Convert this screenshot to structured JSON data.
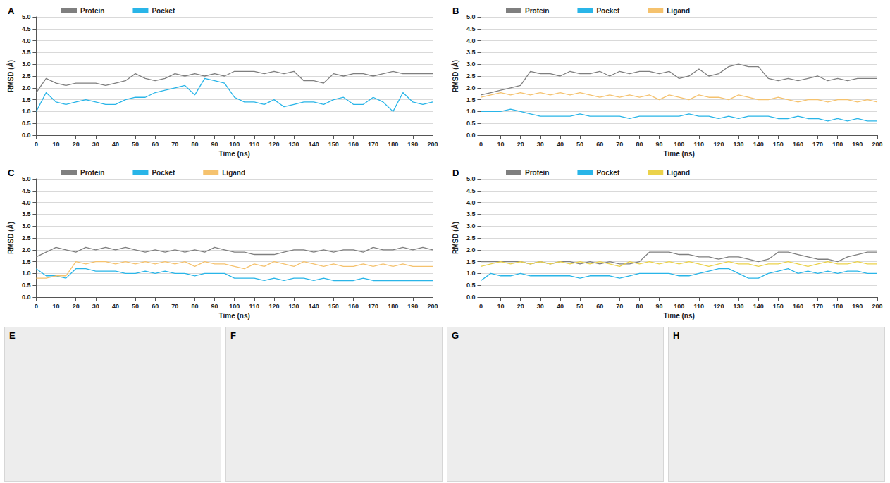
{
  "chart_data": [
    {
      "type": "line",
      "title": "A",
      "x_label": "Time (ns)",
      "y_label": "RMSD (Å)",
      "x": [
        0,
        5,
        10,
        15,
        20,
        25,
        30,
        35,
        40,
        45,
        50,
        55,
        60,
        65,
        70,
        75,
        80,
        85,
        90,
        95,
        100,
        105,
        110,
        115,
        120,
        125,
        130,
        135,
        140,
        145,
        150,
        155,
        160,
        165,
        170,
        175,
        180,
        185,
        190,
        195,
        200
      ],
      "series": [
        {
          "name": "Protein",
          "color": "#7f7f7f",
          "values": [
            1.8,
            2.4,
            2.2,
            2.1,
            2.2,
            2.2,
            2.2,
            2.1,
            2.2,
            2.3,
            2.6,
            2.4,
            2.3,
            2.4,
            2.6,
            2.5,
            2.6,
            2.5,
            2.6,
            2.5,
            2.7,
            2.7,
            2.7,
            2.6,
            2.7,
            2.6,
            2.7,
            2.3,
            2.3,
            2.2,
            2.6,
            2.5,
            2.6,
            2.6,
            2.5,
            2.6,
            2.7,
            2.6,
            2.6,
            2.6,
            2.6
          ]
        },
        {
          "name": "Pocket",
          "color": "#29b5e8",
          "values": [
            1.0,
            1.8,
            1.4,
            1.3,
            1.4,
            1.5,
            1.4,
            1.3,
            1.3,
            1.5,
            1.6,
            1.6,
            1.8,
            1.9,
            2.0,
            2.1,
            1.7,
            2.4,
            2.3,
            2.2,
            1.6,
            1.4,
            1.4,
            1.3,
            1.5,
            1.2,
            1.3,
            1.4,
            1.4,
            1.3,
            1.5,
            1.6,
            1.3,
            1.3,
            1.6,
            1.4,
            1.0,
            1.8,
            1.4,
            1.3,
            1.4
          ]
        }
      ],
      "xlim": [
        0,
        200
      ],
      "xticks": [
        0,
        10,
        20,
        30,
        40,
        50,
        60,
        70,
        80,
        90,
        100,
        110,
        120,
        130,
        140,
        150,
        160,
        170,
        180,
        190,
        200
      ],
      "ylim": [
        0,
        5
      ],
      "yticks": [
        {
          "value": 0,
          "label": "0.0"
        },
        {
          "value": 0.5,
          "label": "0.5"
        },
        {
          "value": 1,
          "label": "1.0"
        },
        {
          "value": 1.5,
          "label": "1.5"
        },
        {
          "value": 2,
          "label": "2.0"
        },
        {
          "value": 2.5,
          "label": "2.5"
        },
        {
          "value": 3,
          "label": "3.0"
        },
        {
          "value": 3.5,
          "label": "3.5"
        },
        {
          "value": 4,
          "label": "4.0"
        },
        {
          "value": 4.5,
          "label": "4.5"
        },
        {
          "value": 5,
          "label": "5.0"
        }
      ],
      "grid": true,
      "legend": "upper left"
    },
    {
      "type": "line",
      "title": "B",
      "x_label": "Time (ns)",
      "y_label": "RMSD (Å)",
      "x": [
        0,
        5,
        10,
        15,
        20,
        25,
        30,
        35,
        40,
        45,
        50,
        55,
        60,
        65,
        70,
        75,
        80,
        85,
        90,
        95,
        100,
        105,
        110,
        115,
        120,
        125,
        130,
        135,
        140,
        145,
        150,
        155,
        160,
        165,
        170,
        175,
        180,
        185,
        190,
        195,
        200
      ],
      "series": [
        {
          "name": "Protein",
          "color": "#7f7f7f",
          "values": [
            1.7,
            1.8,
            1.9,
            2.0,
            2.1,
            2.7,
            2.6,
            2.6,
            2.5,
            2.7,
            2.6,
            2.6,
            2.7,
            2.5,
            2.7,
            2.6,
            2.7,
            2.7,
            2.6,
            2.7,
            2.4,
            2.5,
            2.8,
            2.5,
            2.6,
            2.9,
            3.0,
            2.9,
            2.9,
            2.4,
            2.3,
            2.4,
            2.3,
            2.4,
            2.5,
            2.3,
            2.4,
            2.3,
            2.4,
            2.4,
            2.4
          ]
        },
        {
          "name": "Pocket",
          "color": "#29b5e8",
          "values": [
            1.0,
            1.0,
            1.0,
            1.1,
            1.0,
            0.9,
            0.8,
            0.8,
            0.8,
            0.8,
            0.9,
            0.8,
            0.8,
            0.8,
            0.8,
            0.7,
            0.8,
            0.8,
            0.8,
            0.8,
            0.8,
            0.9,
            0.8,
            0.8,
            0.7,
            0.8,
            0.7,
            0.8,
            0.8,
            0.8,
            0.7,
            0.7,
            0.8,
            0.7,
            0.7,
            0.6,
            0.7,
            0.6,
            0.7,
            0.6,
            0.6
          ]
        },
        {
          "name": "Ligand",
          "color": "#f5c26e",
          "values": [
            1.6,
            1.7,
            1.8,
            1.7,
            1.8,
            1.7,
            1.8,
            1.7,
            1.8,
            1.7,
            1.8,
            1.7,
            1.6,
            1.7,
            1.6,
            1.7,
            1.6,
            1.7,
            1.5,
            1.7,
            1.6,
            1.5,
            1.7,
            1.6,
            1.6,
            1.5,
            1.7,
            1.6,
            1.5,
            1.5,
            1.6,
            1.5,
            1.4,
            1.5,
            1.5,
            1.4,
            1.5,
            1.5,
            1.4,
            1.5,
            1.4
          ]
        }
      ],
      "xlim": [
        0,
        200
      ],
      "xticks": [
        0,
        10,
        20,
        30,
        40,
        50,
        60,
        70,
        80,
        90,
        100,
        110,
        120,
        130,
        140,
        150,
        160,
        170,
        180,
        190,
        200
      ],
      "ylim": [
        0,
        5
      ],
      "yticks": [
        {
          "value": 0,
          "label": "0.0"
        },
        {
          "value": 0.5,
          "label": "0.5"
        },
        {
          "value": 1,
          "label": "1.0"
        },
        {
          "value": 1.5,
          "label": "1.5"
        },
        {
          "value": 2,
          "label": "2.0"
        },
        {
          "value": 2.5,
          "label": "2.5"
        },
        {
          "value": 3,
          "label": "3.0"
        },
        {
          "value": 3.5,
          "label": "3.5"
        },
        {
          "value": 4,
          "label": "4.0"
        },
        {
          "value": 4.5,
          "label": "4.5"
        },
        {
          "value": 5,
          "label": "5.0"
        }
      ],
      "grid": true,
      "legend": "upper left"
    },
    {
      "type": "line",
      "title": "C",
      "x_label": "Time (ns)",
      "y_label": "RMSD (Å)",
      "x": [
        0,
        5,
        10,
        15,
        20,
        25,
        30,
        35,
        40,
        45,
        50,
        55,
        60,
        65,
        70,
        75,
        80,
        85,
        90,
        95,
        100,
        105,
        110,
        115,
        120,
        125,
        130,
        135,
        140,
        145,
        150,
        155,
        160,
        165,
        170,
        175,
        180,
        185,
        190,
        195,
        200
      ],
      "series": [
        {
          "name": "Protein",
          "color": "#7f7f7f",
          "values": [
            1.7,
            1.9,
            2.1,
            2.0,
            1.9,
            2.1,
            2.0,
            2.1,
            2.0,
            2.1,
            2.0,
            1.9,
            2.0,
            1.9,
            2.0,
            1.9,
            2.0,
            1.9,
            2.1,
            2.0,
            1.9,
            1.9,
            1.8,
            1.8,
            1.8,
            1.9,
            2.0,
            2.0,
            1.9,
            2.0,
            1.9,
            2.0,
            2.0,
            1.9,
            2.1,
            2.0,
            2.0,
            2.1,
            2.0,
            2.1,
            2.0
          ]
        },
        {
          "name": "Pocket",
          "color": "#29b5e8",
          "values": [
            1.2,
            0.9,
            0.9,
            0.8,
            1.2,
            1.2,
            1.1,
            1.1,
            1.1,
            1.0,
            1.0,
            1.1,
            1.0,
            1.1,
            1.0,
            1.0,
            0.9,
            1.0,
            1.0,
            1.0,
            0.8,
            0.8,
            0.8,
            0.7,
            0.8,
            0.7,
            0.8,
            0.8,
            0.7,
            0.8,
            0.7,
            0.7,
            0.7,
            0.8,
            0.7,
            0.7,
            0.7,
            0.7,
            0.7,
            0.7,
            0.7
          ]
        },
        {
          "name": "Ligand",
          "color": "#f5c26e",
          "values": [
            0.8,
            0.8,
            0.9,
            0.9,
            1.5,
            1.4,
            1.5,
            1.5,
            1.4,
            1.5,
            1.4,
            1.5,
            1.4,
            1.5,
            1.4,
            1.5,
            1.3,
            1.5,
            1.4,
            1.4,
            1.3,
            1.2,
            1.4,
            1.3,
            1.5,
            1.4,
            1.3,
            1.5,
            1.4,
            1.3,
            1.4,
            1.3,
            1.3,
            1.4,
            1.3,
            1.4,
            1.3,
            1.4,
            1.3,
            1.3,
            1.3
          ]
        }
      ],
      "xlim": [
        0,
        200
      ],
      "xticks": [
        0,
        10,
        20,
        30,
        40,
        50,
        60,
        70,
        80,
        90,
        100,
        110,
        120,
        130,
        140,
        150,
        160,
        170,
        180,
        190,
        200
      ],
      "ylim": [
        0,
        5
      ],
      "yticks": [
        {
          "value": 0,
          "label": "0.0"
        },
        {
          "value": 0.5,
          "label": "0.5"
        },
        {
          "value": 1,
          "label": "1.0"
        },
        {
          "value": 1.5,
          "label": "1.5"
        },
        {
          "value": 2,
          "label": "2.0"
        },
        {
          "value": 2.5,
          "label": "2.5"
        },
        {
          "value": 3,
          "label": "3.0"
        },
        {
          "value": 3.5,
          "label": "3.5"
        },
        {
          "value": 4,
          "label": "4.0"
        },
        {
          "value": 4.5,
          "label": "4.5"
        },
        {
          "value": 5,
          "label": "5.0"
        }
      ],
      "grid": true,
      "legend": "upper left"
    },
    {
      "type": "line",
      "title": "D",
      "x_label": "Time (ns)",
      "y_label": "RMSD (Å)",
      "x": [
        0,
        5,
        10,
        15,
        20,
        25,
        30,
        35,
        40,
        45,
        50,
        55,
        60,
        65,
        70,
        75,
        80,
        85,
        90,
        95,
        100,
        105,
        110,
        115,
        120,
        125,
        130,
        135,
        140,
        145,
        150,
        155,
        160,
        165,
        170,
        175,
        180,
        185,
        190,
        195,
        200
      ],
      "series": [
        {
          "name": "Protein",
          "color": "#7f7f7f",
          "values": [
            1.5,
            1.5,
            1.5,
            1.5,
            1.5,
            1.4,
            1.5,
            1.4,
            1.5,
            1.5,
            1.4,
            1.5,
            1.4,
            1.5,
            1.4,
            1.4,
            1.5,
            1.9,
            1.9,
            1.9,
            1.8,
            1.8,
            1.7,
            1.7,
            1.6,
            1.7,
            1.7,
            1.6,
            1.5,
            1.6,
            1.9,
            1.9,
            1.8,
            1.7,
            1.6,
            1.6,
            1.5,
            1.7,
            1.8,
            1.9,
            1.9
          ]
        },
        {
          "name": "Pocket",
          "color": "#29b5e8",
          "values": [
            0.7,
            1.0,
            0.9,
            0.9,
            1.0,
            0.9,
            0.9,
            0.9,
            0.9,
            0.9,
            0.8,
            0.9,
            0.9,
            0.9,
            0.8,
            0.9,
            1.0,
            1.0,
            1.0,
            1.0,
            0.9,
            0.9,
            1.0,
            1.1,
            1.2,
            1.2,
            1.0,
            0.8,
            0.8,
            1.0,
            1.1,
            1.2,
            1.0,
            1.1,
            1.0,
            1.1,
            1.0,
            1.1,
            1.1,
            1.0,
            1.0
          ]
        },
        {
          "name": "Ligand",
          "color": "#ebd24a",
          "values": [
            1.3,
            1.4,
            1.5,
            1.4,
            1.5,
            1.4,
            1.5,
            1.4,
            1.5,
            1.4,
            1.5,
            1.4,
            1.5,
            1.4,
            1.3,
            1.5,
            1.4,
            1.5,
            1.4,
            1.5,
            1.4,
            1.5,
            1.4,
            1.3,
            1.4,
            1.5,
            1.4,
            1.4,
            1.3,
            1.4,
            1.4,
            1.5,
            1.4,
            1.3,
            1.4,
            1.5,
            1.4,
            1.4,
            1.5,
            1.4,
            1.4
          ]
        }
      ],
      "xlim": [
        0,
        200
      ],
      "xticks": [
        0,
        10,
        20,
        30,
        40,
        50,
        60,
        70,
        80,
        90,
        100,
        110,
        120,
        130,
        140,
        150,
        160,
        170,
        180,
        190,
        200
      ],
      "ylim": [
        0,
        5
      ],
      "yticks": [
        {
          "value": 0,
          "label": "0.0"
        },
        {
          "value": 0.5,
          "label": "0.5"
        },
        {
          "value": 1,
          "label": "1.0"
        },
        {
          "value": 1.5,
          "label": "1.5"
        },
        {
          "value": 2,
          "label": "2.0"
        },
        {
          "value": 2.5,
          "label": "2.5"
        },
        {
          "value": 3,
          "label": "3.0"
        },
        {
          "value": 3.5,
          "label": "3.5"
        },
        {
          "value": 4,
          "label": "4.0"
        },
        {
          "value": 4.5,
          "label": "4.5"
        },
        {
          "value": 5,
          "label": "5.0"
        }
      ],
      "grid": true,
      "legend": "upper left"
    }
  ],
  "images": [
    {
      "label": "E"
    },
    {
      "label": "F"
    },
    {
      "label": "G"
    },
    {
      "label": "H"
    }
  ]
}
